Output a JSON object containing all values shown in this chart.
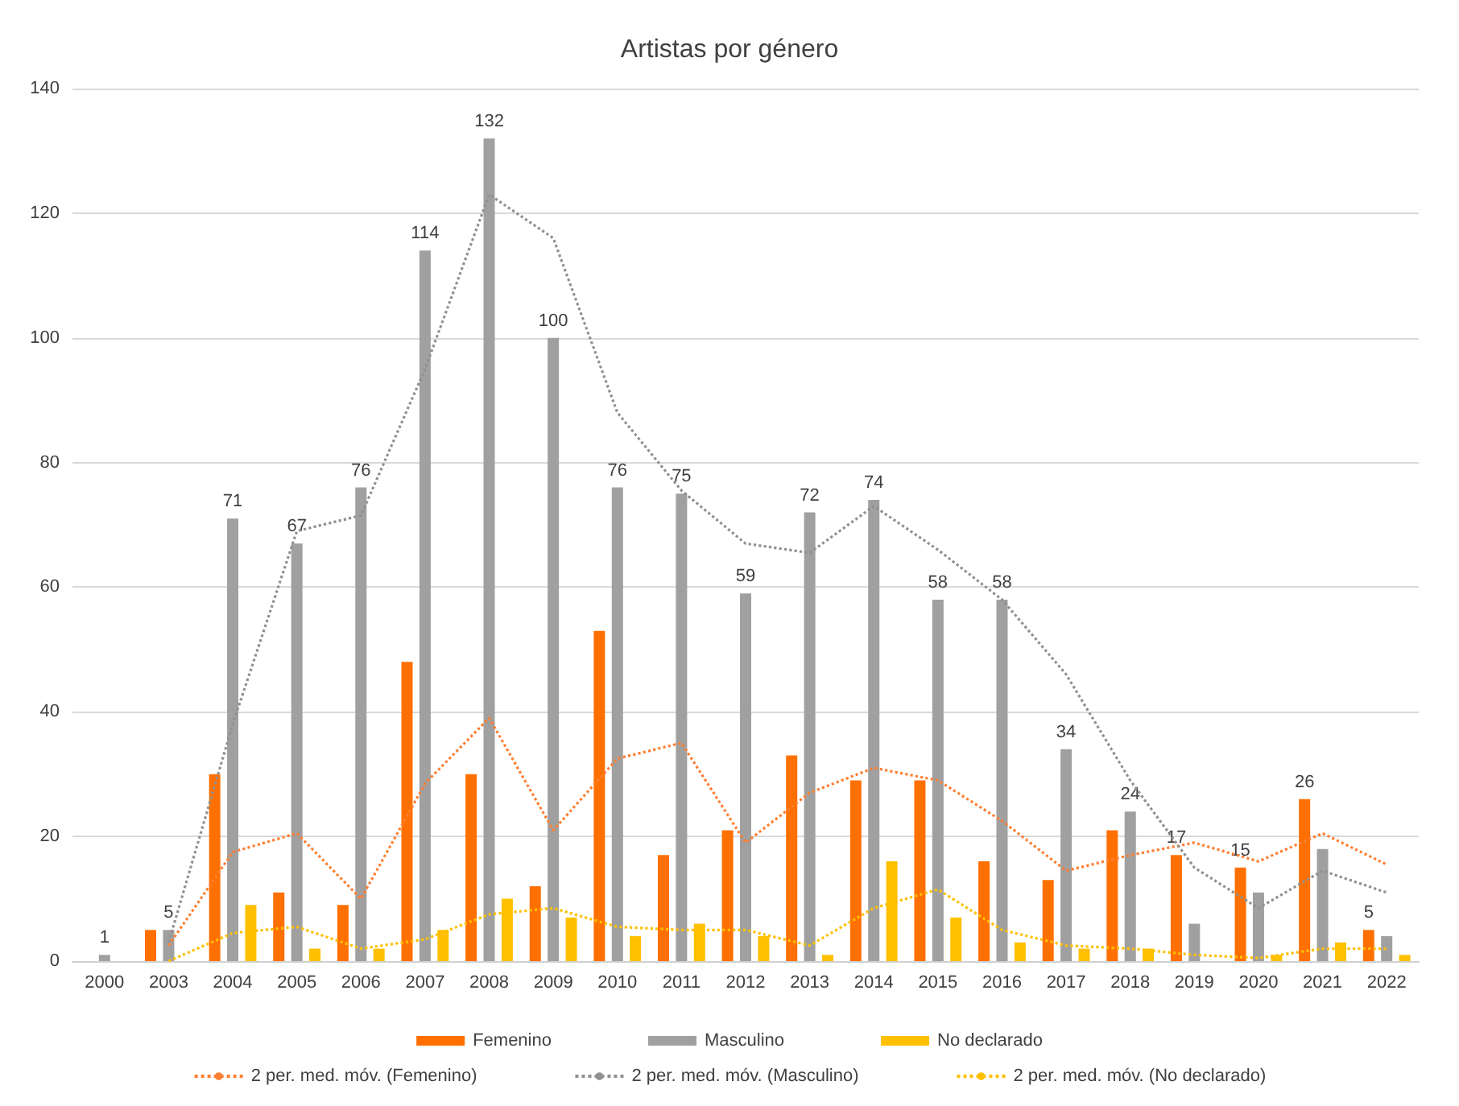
{
  "chart_data": {
    "type": "bar",
    "title": "Artistas por género",
    "categories": [
      "2000",
      "2003",
      "2004",
      "2005",
      "2006",
      "2007",
      "2008",
      "2009",
      "2010",
      "2011",
      "2012",
      "2013",
      "2014",
      "2015",
      "2016",
      "2017",
      "2018",
      "2019",
      "2020",
      "2021",
      "2022"
    ],
    "series": [
      {
        "name": "Femenino",
        "color": "#ff7000",
        "values": [
          0,
          5,
          30,
          11,
          9,
          48,
          30,
          12,
          53,
          17,
          21,
          33,
          29,
          29,
          16,
          13,
          21,
          17,
          15,
          26,
          5
        ],
        "value_labels": [
          null,
          null,
          null,
          null,
          null,
          null,
          null,
          null,
          null,
          null,
          null,
          null,
          null,
          null,
          null,
          null,
          null,
          "17",
          "15",
          "26",
          "5"
        ]
      },
      {
        "name": "Masculino",
        "color": "#a0a0a0",
        "values": [
          1,
          5,
          71,
          67,
          76,
          114,
          132,
          100,
          76,
          75,
          59,
          72,
          74,
          58,
          58,
          34,
          24,
          6,
          11,
          18,
          4
        ],
        "value_labels": [
          "1",
          "5",
          "71",
          "67",
          "76",
          "114",
          "132",
          "100",
          "76",
          "75",
          "59",
          "72",
          "74",
          "58",
          "58",
          "34",
          "24",
          null,
          null,
          null,
          null
        ]
      },
      {
        "name": "No declarado",
        "color": "#ffc000",
        "values": [
          0,
          0,
          9,
          2,
          2,
          5,
          10,
          7,
          4,
          6,
          4,
          1,
          16,
          7,
          3,
          2,
          2,
          0,
          1,
          3,
          1
        ]
      },
      {
        "name": "2 per. med. móv. (Femenino)",
        "type": "line",
        "color": "#ff7f32",
        "line_style": "dotted",
        "marker": "none",
        "values": [
          null,
          2.5,
          17.5,
          20.5,
          10,
          28.5,
          39,
          21,
          32.5,
          35,
          19,
          27,
          31,
          29,
          22.5,
          14.5,
          17,
          19,
          16,
          20.5,
          15.5
        ]
      },
      {
        "name": "2 per. med. móv. (Masculino)",
        "type": "line",
        "color": "#909090",
        "line_style": "dotted",
        "marker": "none",
        "values": [
          null,
          3,
          38,
          69,
          71.5,
          95,
          123,
          116,
          88,
          75.5,
          67,
          65.5,
          73,
          66,
          58,
          46,
          29,
          15,
          8.5,
          14.5,
          11
        ]
      },
      {
        "name": "2 per. med. móv. (No declarado)",
        "type": "line",
        "color": "#ffc000",
        "line_style": "dotted",
        "marker": "none",
        "values": [
          null,
          0,
          4.5,
          5.5,
          2,
          3.5,
          7.5,
          8.5,
          5.5,
          5,
          5,
          2.5,
          8.5,
          11.5,
          5,
          2.5,
          2,
          1,
          0.5,
          2,
          2
        ]
      }
    ],
    "ylim": [
      0,
      140
    ],
    "yticks": [
      0,
      20,
      40,
      60,
      80,
      100,
      120,
      140
    ],
    "grid": "y",
    "legend": "bottom"
  }
}
